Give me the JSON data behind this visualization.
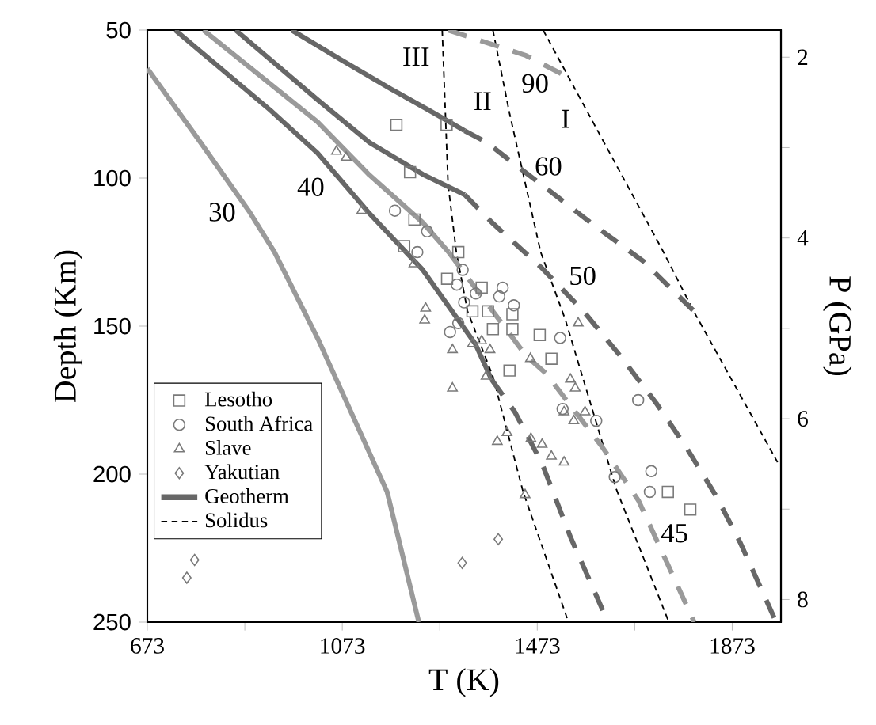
{
  "chart_data": {
    "type": "line",
    "xlabel": "T (K)",
    "ylabel": "Depth (Km)",
    "y2label": "P (GPa)",
    "xlim": [
      673,
      1973
    ],
    "ylim": [
      250,
      50
    ],
    "y2lim": [
      8.25,
      1.7
    ],
    "xticks": [
      673,
      {
        "value": 873,
        "label": null
      },
      1073,
      {
        "value": 1273,
        "label": null
      },
      1473,
      {
        "value": 1673,
        "label": null
      },
      1873
    ],
    "yticks": [
      50,
      {
        "value": 75,
        "label": null
      },
      100,
      {
        "value": 125,
        "label": null
      },
      150,
      {
        "value": 175,
        "label": null
      },
      200,
      {
        "value": 225,
        "label": null
      },
      250
    ],
    "y2ticks": [
      2,
      {
        "value": 3,
        "label": null
      },
      4,
      {
        "value": 5,
        "label": null
      },
      6,
      {
        "value": 7,
        "label": null
      },
      8
    ],
    "legend": "bottom left",
    "series": [
      {
        "name": "Lesotho",
        "type": "scatter",
        "marker": "square",
        "color": "#7a7a7a",
        "x": [
          1184,
          1287,
          1212,
          1221,
          1200,
          1311,
          1288,
          1359,
          1340,
          1372,
          1382,
          1422,
          1422,
          1478,
          1502,
          1416,
          1741,
          1787
        ],
        "values": [
          82,
          82,
          98,
          114,
          123,
          125,
          134,
          137,
          145,
          145,
          151,
          146,
          151,
          153,
          161,
          165,
          206,
          212
        ]
      },
      {
        "name": "South Africa",
        "type": "scatter",
        "marker": "circle",
        "color": "#7a7a7a",
        "x": [
          1181,
          1247,
          1227,
          1320,
          1308,
          1402,
          1395,
          1425,
          1323,
          1347,
          1311,
          1294,
          1520,
          1680,
          1525,
          1594,
          1632,
          1707,
          1704
        ],
        "values": [
          111,
          118,
          125,
          131,
          136,
          137,
          140,
          143,
          142,
          139,
          149,
          152,
          154,
          175,
          178,
          182,
          201,
          199,
          206
        ]
      },
      {
        "name": "Slave",
        "type": "scatter",
        "marker": "triangle",
        "color": "#7a7a7a",
        "x": [
          1061,
          1081,
          1113,
          1220,
          1244,
          1242,
          1299,
          1359,
          1340,
          1376,
          1299,
          1368,
          1459,
          1557,
          1541,
          1551,
          1528,
          1571,
          1548,
          1391,
          1411,
          1460,
          1483,
          1502,
          1528,
          1448
        ],
        "values": [
          91,
          93,
          111,
          129,
          144,
          148,
          158,
          155,
          156,
          158,
          171,
          167,
          161,
          149,
          168,
          171,
          179,
          179,
          182,
          189,
          186,
          188,
          190,
          194,
          196,
          207
        ]
      },
      {
        "name": "Yakutian",
        "type": "scatter",
        "marker": "diamond",
        "color": "#7a7a7a",
        "x": [
          770,
          754,
          1319,
          1393
        ],
        "values": [
          229,
          235,
          230,
          222
        ]
      },
      {
        "name": "Geotherm",
        "type": "line",
        "line_style": "solid",
        "color": "#676767",
        "x": [
          730,
          925,
          1022,
          1129,
          1238,
          1346,
          1379
        ],
        "values": [
          50,
          77,
          91.5,
          112,
          131,
          156,
          168
        ]
      },
      {
        "name": "Solidus",
        "type": "line",
        "line_style": "dashed",
        "color": "#000000",
        "x": [
          1485,
          1732,
          1794,
          1966
        ],
        "values": [
          50,
          125,
          145,
          196
        ]
      },
      {
        "type": "line",
        "line_style": "dashed",
        "color": "#000000",
        "x": [
          1382,
          1416,
          1480,
          1531,
          1635,
          1743
        ],
        "values": [
          50,
          78,
          125,
          148,
          205,
          250
        ]
      },
      {
        "type": "line",
        "line_style": "dashed",
        "color": "#000000",
        "x": [
          1278,
          1290,
          1307,
          1330,
          1382,
          1444,
          1537
        ],
        "values": [
          50,
          102,
          125,
          145,
          167,
          206,
          250
        ]
      },
      {
        "type": "line",
        "line_style": "solid",
        "color": "#9a9a9a",
        "x": [
          673,
          778,
          883,
          934,
          1025,
          1165,
          1230
        ],
        "values": [
          63,
          87,
          111.5,
          125,
          155,
          206,
          250
        ]
      },
      {
        "type": "line",
        "line_style": "dashed",
        "color": "#676767",
        "x": [
          1379,
          1427,
          1483,
          1542,
          1594,
          1618
        ],
        "values": [
          168,
          179,
          196.5,
          221.6,
          241,
          250
        ]
      },
      {
        "type": "line",
        "line_style": "solid",
        "color": "#9a9a9a",
        "x": [
          788,
          1022,
          1129,
          1238,
          1291
        ],
        "values": [
          50,
          81,
          99,
          115,
          125
        ]
      },
      {
        "type": "line",
        "line_style": "dashed",
        "color": "#9a9a9a",
        "x": [
          1291,
          1450,
          1491,
          1607,
          1681,
          1795
        ],
        "values": [
          125,
          160,
          166,
          191,
          209,
          250
        ]
      },
      {
        "type": "line",
        "line_style": "solid",
        "color": "#676767",
        "x": [
          854,
          1022,
          1129,
          1238,
          1324
        ],
        "values": [
          50,
          73.5,
          88,
          98.7,
          105.6
        ]
      },
      {
        "type": "line",
        "line_style": "dashed",
        "color": "#676767",
        "x": [
          1324,
          1380,
          1480,
          1568,
          1643,
          1717,
          1779,
          1842,
          1889,
          1944,
          1963
        ],
        "values": [
          105.6,
          115,
          130,
          145,
          160,
          176,
          191,
          208,
          223,
          243,
          250
        ]
      },
      {
        "type": "line",
        "line_style": "solid",
        "color": "#676767",
        "x": [
          969,
          1070,
          1174,
          1250,
          1324
        ],
        "values": [
          50,
          60,
          70,
          77,
          84
        ]
      },
      {
        "type": "line",
        "line_style": "dashed",
        "color": "#676767",
        "x": [
          1324,
          1370,
          1428,
          1500,
          1590,
          1690,
          1801
        ],
        "values": [
          84,
          88,
          95.5,
          104.5,
          116,
          128,
          146
        ]
      },
      {
        "type": "line",
        "line_style": "dashed",
        "color": "#9a9a9a",
        "x": [
          1290,
          1450,
          1531
        ],
        "values": [
          50,
          58.6,
          65.5
        ]
      }
    ],
    "annotations": [
      "30",
      "40",
      "45",
      "50",
      "60",
      "90",
      "III",
      "II",
      "I"
    ]
  }
}
